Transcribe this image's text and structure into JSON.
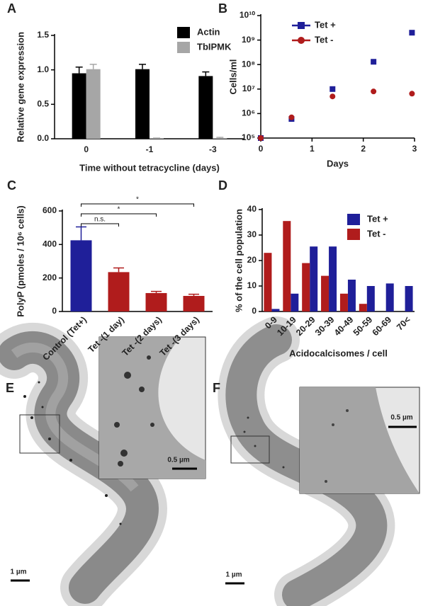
{
  "panels": [
    "A",
    "B",
    "C",
    "D",
    "E",
    "F"
  ],
  "chart_data": [
    {
      "type": "bar",
      "categories": [
        "0",
        "-1",
        "-3"
      ],
      "series": [
        {
          "name": "Actin",
          "color": "#000000",
          "values": [
            0.95,
            1.01,
            0.91
          ],
          "errors": [
            0.09,
            0.07,
            0.06
          ]
        },
        {
          "name": "TbIPMK",
          "color": "#a6a6a6",
          "values": [
            1.01,
            0.01,
            0.01
          ],
          "errors": [
            0.07,
            0,
            0.01
          ]
        }
      ],
      "ylim": [
        0,
        1.5
      ],
      "yticks": [
        {
          "value": 0,
          "label": "0.0"
        },
        0.5,
        {
          "value": 1,
          "label": "1.0"
        },
        1.5
      ],
      "y_label": "Relative gene expression",
      "x_label": "Time without tetracycline (days)",
      "legend": "upper right"
    },
    {
      "type": "line",
      "log_y": true,
      "series": [
        {
          "name": "Tet +",
          "color": "#1f1f99",
          "marker": "square",
          "x": [
            0,
            0.6,
            1.4,
            2.2,
            2.95
          ],
          "values": [
            100000,
            600000,
            10000000,
            130000000,
            2000000000
          ]
        },
        {
          "name": "Tet -",
          "color": "#b01c1c",
          "marker": "circle",
          "x": [
            0,
            0.6,
            1.4,
            2.2,
            2.95
          ],
          "values": [
            100000,
            700000,
            5000000,
            8000000,
            6500000
          ]
        }
      ],
      "xlim": [
        0,
        3
      ],
      "xticks": [
        0,
        1,
        2,
        3
      ],
      "ylim": [
        100000,
        10000000000
      ],
      "yticks": [
        {
          "value": 100000,
          "label": "10⁵"
        },
        {
          "value": 1000000,
          "label": "10⁶"
        },
        {
          "value": 10000000,
          "label": "10⁷"
        },
        {
          "value": 100000000,
          "label": "10⁸"
        },
        {
          "value": 1000000000,
          "label": "10⁹"
        },
        {
          "value": 10000000000,
          "label": "10¹⁰"
        }
      ],
      "y_label": "Cells/ml",
      "x_label": "Days",
      "legend": "upper left"
    },
    {
      "type": "bar",
      "categories": [
        "Control (Tet+)",
        "Tet -(1 day)",
        "Tet -(2 days)",
        "Tet -(3 days)"
      ],
      "values": [
        425,
        235,
        110,
        93
      ],
      "errors": [
        80,
        25,
        10,
        10
      ],
      "colors": [
        "#1f1f99",
        "#b01c1c",
        "#b01c1c",
        "#b01c1c"
      ],
      "ylim": [
        0,
        600
      ],
      "yticks": [
        0,
        200,
        400,
        600
      ],
      "y_label": "PolyP (pmoles / 10⁶ cells)",
      "annotations": [
        {
          "text": "*",
          "span": [
            0,
            3
          ]
        },
        {
          "text": "*",
          "span": [
            0,
            2
          ]
        },
        {
          "text": "n.s.",
          "span": [
            0,
            1
          ]
        }
      ]
    },
    {
      "type": "bar",
      "categories": [
        "0-9",
        "10-19",
        "20-29",
        "30-39",
        "40-49",
        "50-59",
        "60-69",
        "70<"
      ],
      "series": [
        {
          "name": "Tet +",
          "color": "#1f1f99",
          "values": [
            1,
            7,
            25.5,
            25.5,
            12.5,
            10,
            11,
            10
          ]
        },
        {
          "name": "Tet -",
          "color": "#b01c1c",
          "values": [
            23,
            35.5,
            19,
            14,
            7,
            3,
            0,
            0
          ]
        }
      ],
      "ylim": [
        0,
        40
      ],
      "yticks": [
        0,
        10,
        20,
        30,
        40
      ],
      "y_label": "% of the cell population",
      "x_label": "Acidocalcisomes / cell",
      "legend": "upper right"
    }
  ],
  "micrographs": [
    {
      "scale_bar": "1 µm",
      "inset_scale_bar": "0.5 µm"
    },
    {
      "scale_bar": "1 µm",
      "inset_scale_bar": "0.5 µm"
    }
  ]
}
